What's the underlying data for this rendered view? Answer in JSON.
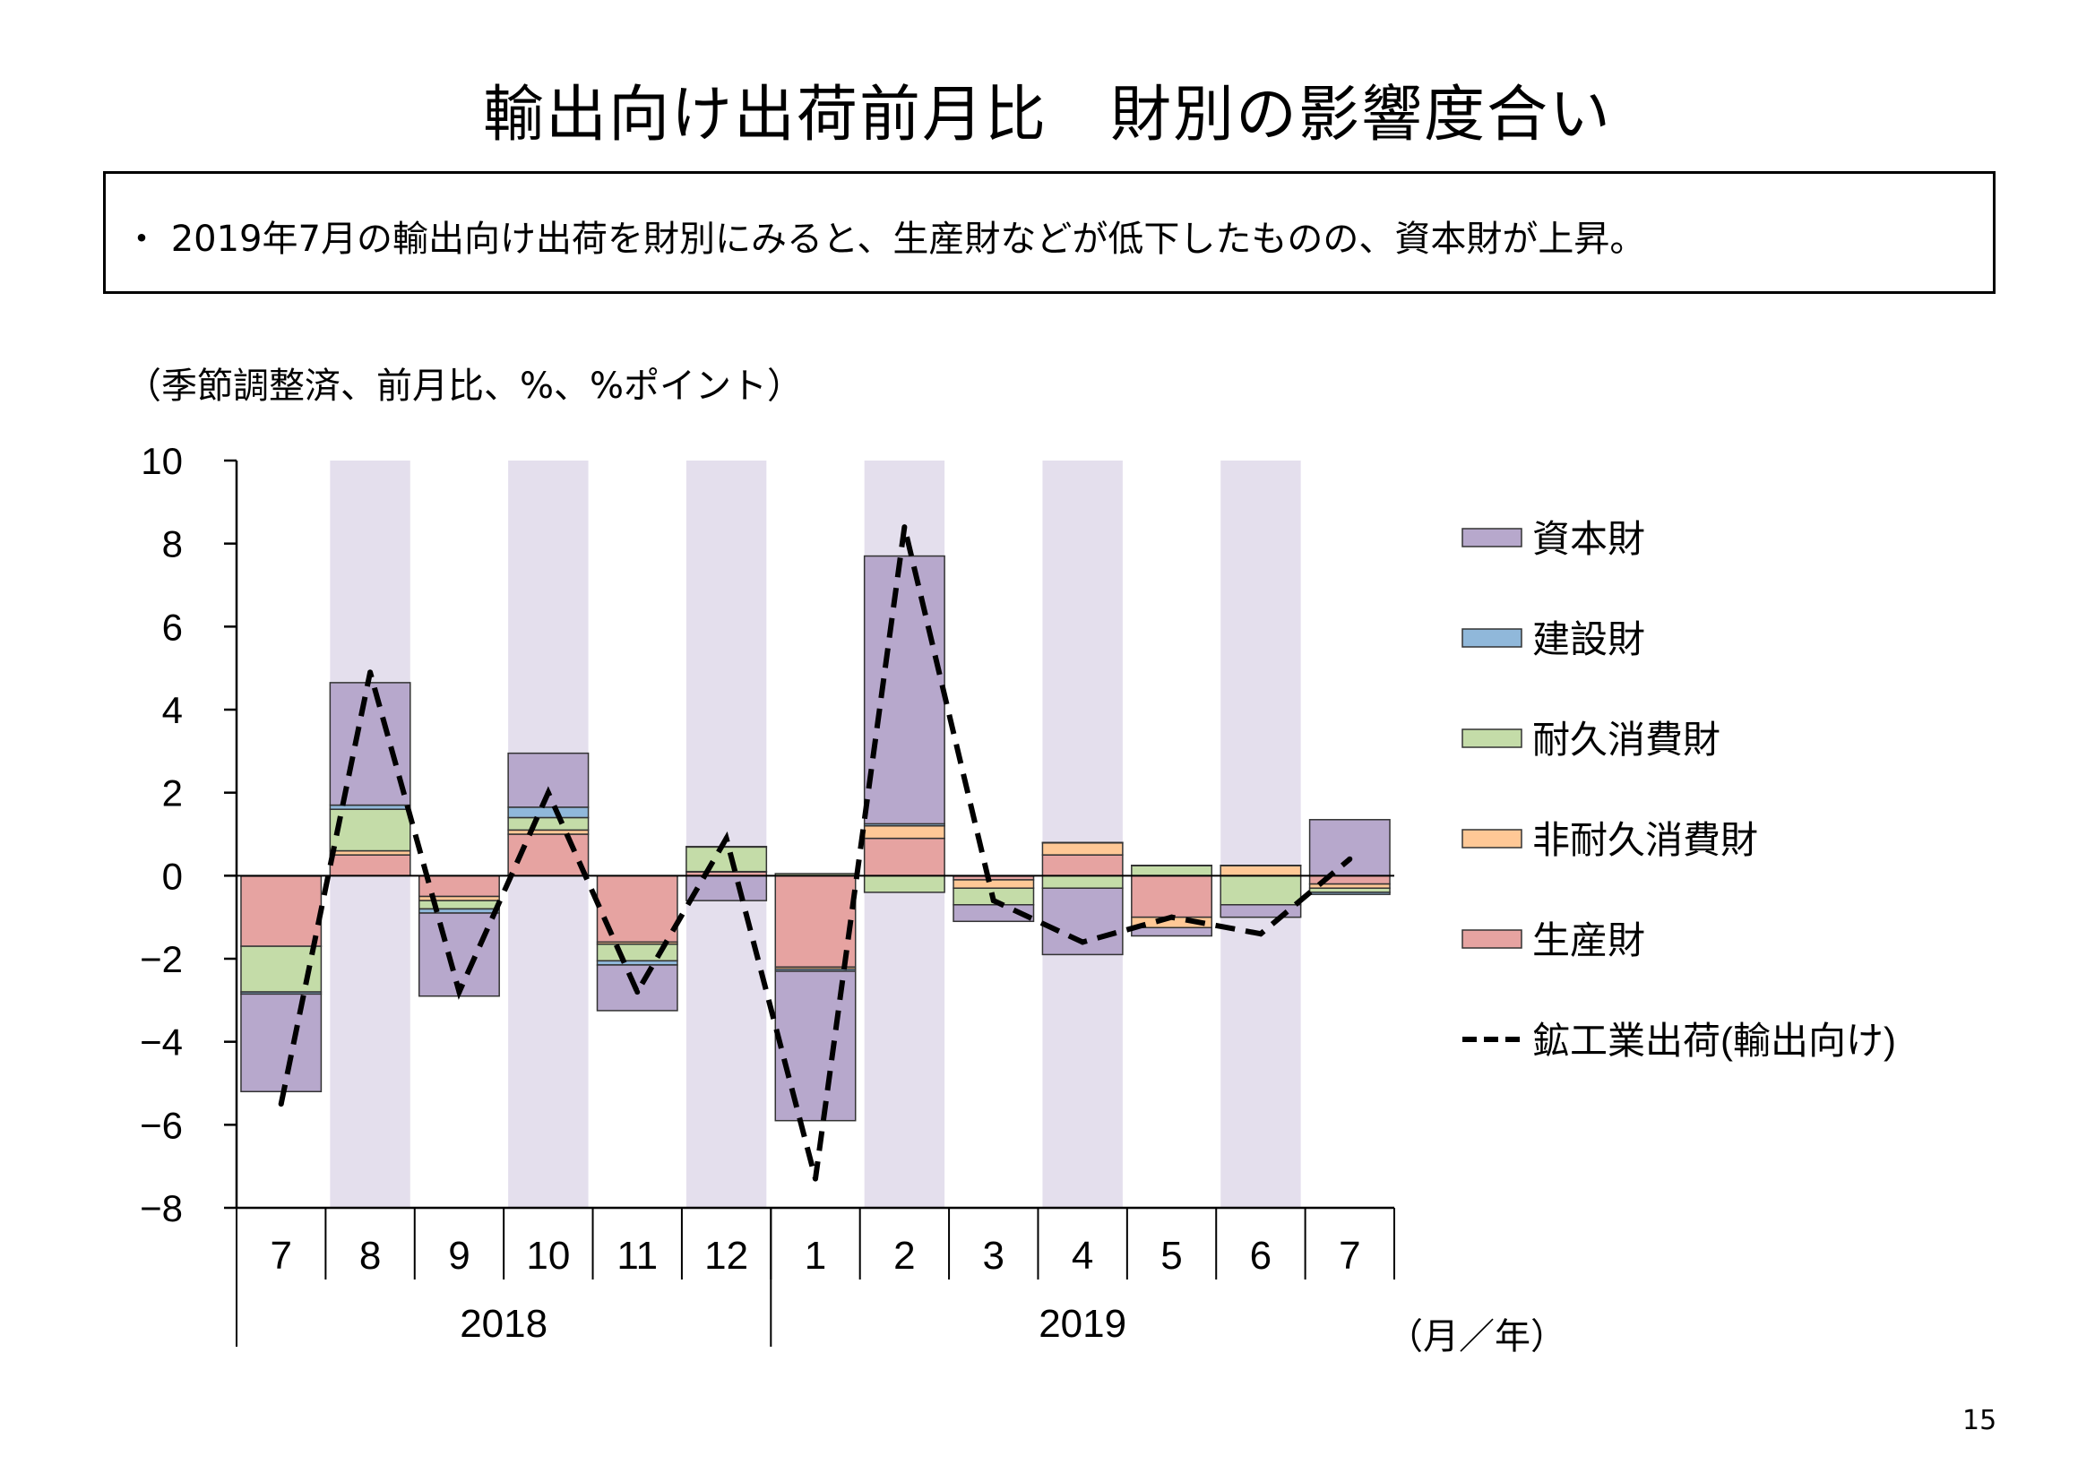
{
  "title": "輸出向け出荷前月比　財別の影響度合い",
  "summary": "・ 2019年7月の輸出向け出荷を財別にみると、生産財などが低下したものの、資本財が上昇。",
  "unit_note": "（季節調整済、前月比、%、%ポイント）",
  "page_number": "15",
  "chart_data": {
    "type": "bar",
    "stacked": true,
    "categories": [
      "7",
      "8",
      "9",
      "10",
      "11",
      "12",
      "1",
      "2",
      "3",
      "4",
      "5",
      "6",
      "7"
    ],
    "years": [
      {
        "label": "2018",
        "start": 0,
        "end": 5
      },
      {
        "label": "2019",
        "start": 6,
        "end": 12
      }
    ],
    "axis_unit_label": "（月／年）",
    "ylim": [
      -8,
      10
    ],
    "yticks": [
      10,
      8,
      6,
      4,
      2,
      0,
      -2,
      -4,
      -6,
      -8
    ],
    "shaded_categories": [
      1,
      3,
      5,
      7,
      9,
      11
    ],
    "shade_color": "#e4dfed",
    "series": [
      {
        "name": "生産財",
        "color": "#e6a3a1",
        "values": [
          -1.7,
          0.5,
          -0.5,
          1.0,
          -1.6,
          0.1,
          -2.2,
          0.9,
          -0.1,
          0.5,
          -1.0,
          0.0,
          -0.2
        ]
      },
      {
        "name": "非耐久消費財",
        "color": "#ffc896",
        "values": [
          0.0,
          0.1,
          -0.1,
          0.1,
          -0.05,
          0.0,
          -0.05,
          0.3,
          -0.2,
          0.3,
          -0.25,
          0.25,
          -0.1
        ]
      },
      {
        "name": "耐久消費財",
        "color": "#c4dca8",
        "values": [
          -1.1,
          1.0,
          -0.2,
          0.3,
          -0.4,
          0.6,
          0.05,
          -0.4,
          -0.4,
          -0.3,
          0.25,
          -0.7,
          -0.1
        ]
      },
      {
        "name": "建設財",
        "color": "#90b8da",
        "values": [
          -0.05,
          0.1,
          -0.1,
          0.25,
          -0.1,
          0.0,
          -0.05,
          0.05,
          0.0,
          0.0,
          0.0,
          0.0,
          -0.05
        ]
      },
      {
        "name": "資本財",
        "color": "#b7a8cc",
        "values": [
          -2.35,
          2.95,
          -2.0,
          1.3,
          -1.1,
          -0.6,
          -3.6,
          6.45,
          -0.4,
          -1.6,
          -0.2,
          -0.3,
          1.35
        ]
      }
    ],
    "line": {
      "name": "鉱工業出荷(輸出向け)",
      "values": [
        -5.5,
        4.9,
        -2.8,
        2.0,
        -2.8,
        0.9,
        -7.3,
        8.4,
        -0.6,
        -1.6,
        -1.0,
        -1.4,
        0.4
      ]
    }
  }
}
